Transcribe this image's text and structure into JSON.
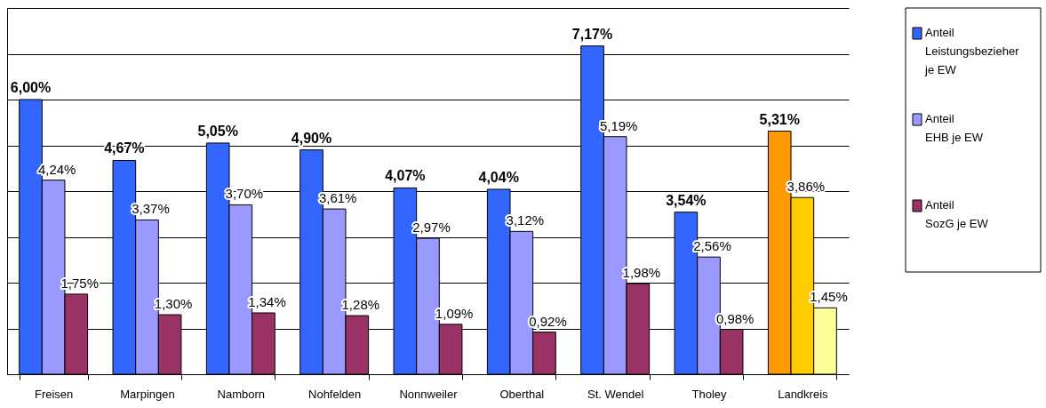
{
  "chart_data": {
    "type": "bar",
    "categories": [
      "Freisen",
      "Marpingen",
      "Namborn",
      "Nohfelden",
      "Nonnweiler",
      "Oberthal",
      "St. Wendel",
      "Tholey",
      "Landkreis"
    ],
    "series": [
      {
        "name": "Anteil\nLeistungsbezieher\nje EW",
        "color": "#3366ff",
        "colors": [
          "#3366ff",
          "#3366ff",
          "#3366ff",
          "#3366ff",
          "#3366ff",
          "#3366ff",
          "#3366ff",
          "#3366ff",
          "#ff9900"
        ],
        "values": [
          6.0,
          4.67,
          5.05,
          4.9,
          4.07,
          4.04,
          7.17,
          3.54,
          5.31
        ],
        "value_labels": [
          "6,00%",
          "4,67%",
          "5,05%",
          "4,90%",
          "4,07%",
          "4,04%",
          "7,17%",
          "3,54%",
          "5,31%"
        ]
      },
      {
        "name": "Anteil\nEHB je EW",
        "color": "#9999ff",
        "colors": [
          "#9999ff",
          "#9999ff",
          "#9999ff",
          "#9999ff",
          "#9999ff",
          "#9999ff",
          "#9999ff",
          "#9999ff",
          "#ffcc00"
        ],
        "values": [
          4.24,
          3.37,
          3.7,
          3.61,
          2.97,
          3.12,
          5.19,
          2.56,
          3.86
        ],
        "value_labels": [
          "4,24%",
          "3,37%",
          "3,70%",
          "3,61%",
          "2,97%",
          "3,12%",
          "5,19%",
          "2,56%",
          "3,86%"
        ]
      },
      {
        "name": "Anteil\nSozG je EW",
        "color": "#993366",
        "colors": [
          "#993366",
          "#993366",
          "#993366",
          "#993366",
          "#993366",
          "#993366",
          "#993366",
          "#993366",
          "#ffff99"
        ],
        "values": [
          1.75,
          1.3,
          1.34,
          1.28,
          1.09,
          0.92,
          1.98,
          0.98,
          1.45
        ],
        "value_labels": [
          "1,75%",
          "1,30%",
          "1,34%",
          "1,28%",
          "1,09%",
          "0,92%",
          "1,98%",
          "0,98%",
          "1,45%"
        ]
      }
    ],
    "ylim": [
      0,
      8
    ],
    "yticks": [
      {
        "value": 0,
        "label": null
      },
      {
        "value": 1,
        "label": null
      },
      {
        "value": 2,
        "label": null
      },
      {
        "value": 3,
        "label": null
      },
      {
        "value": 4,
        "label": null
      },
      {
        "value": 5,
        "label": null
      },
      {
        "value": 6,
        "label": null
      },
      {
        "value": 7,
        "label": null
      },
      {
        "value": 8,
        "label": null
      }
    ],
    "grid": "y",
    "tick_labels": "x",
    "legend": "right"
  }
}
